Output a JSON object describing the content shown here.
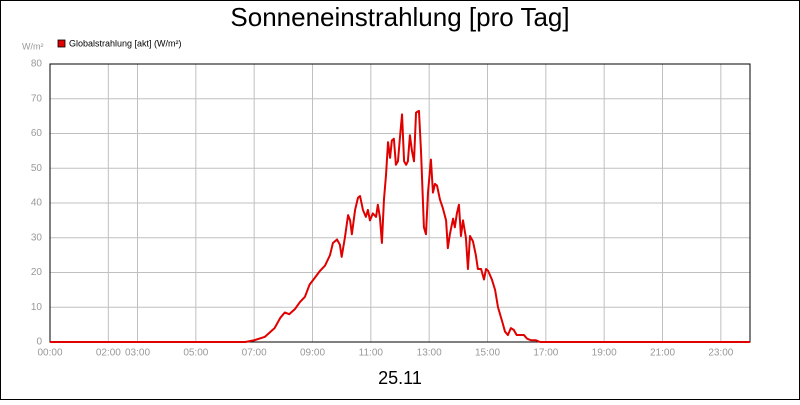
{
  "chart_data": {
    "type": "line",
    "title": "Sonneneinstrahlung [pro Tag]",
    "y_unit": "W/m²",
    "x_label": "25.11",
    "xlim": [
      0,
      24
    ],
    "ylim": [
      0,
      80
    ],
    "yticks": [
      0,
      10,
      20,
      30,
      40,
      50,
      60,
      70,
      80
    ],
    "xticks": [
      {
        "value": 0,
        "label": "00:00"
      },
      {
        "value": 2,
        "label": "02:00"
      },
      {
        "value": 3,
        "label": "03:00"
      },
      {
        "value": 5,
        "label": "05:00"
      },
      {
        "value": 7,
        "label": "07:00"
      },
      {
        "value": 9,
        "label": "09:00"
      },
      {
        "value": 11,
        "label": "11:00"
      },
      {
        "value": 13,
        "label": "13:00"
      },
      {
        "value": 15,
        "label": "15:00"
      },
      {
        "value": 17,
        "label": "17:00"
      },
      {
        "value": 19,
        "label": "19:00"
      },
      {
        "value": 21,
        "label": "21:00"
      },
      {
        "value": 23,
        "label": "23:00"
      }
    ],
    "grid": true,
    "legend": "top-left",
    "x": [
      0,
      6.7,
      7.0,
      7.37,
      7.7,
      7.9,
      8.05,
      8.2,
      8.4,
      8.57,
      8.74,
      8.9,
      9.08,
      9.26,
      9.43,
      9.6,
      9.7,
      9.84,
      9.94,
      10.0,
      10.11,
      10.22,
      10.29,
      10.35,
      10.46,
      10.56,
      10.63,
      10.73,
      10.83,
      10.9,
      10.97,
      11.07,
      11.18,
      11.24,
      11.31,
      11.38,
      11.45,
      11.52,
      11.59,
      11.66,
      11.72,
      11.79,
      11.86,
      11.93,
      12.0,
      12.07,
      12.14,
      12.21,
      12.27,
      12.34,
      12.41,
      12.48,
      12.55,
      12.65,
      12.72,
      12.82,
      12.89,
      12.96,
      13.06,
      13.13,
      13.2,
      13.27,
      13.37,
      13.47,
      13.58,
      13.64,
      13.71,
      13.82,
      13.88,
      13.95,
      14.02,
      14.09,
      14.16,
      14.26,
      14.33,
      14.4,
      14.5,
      14.6,
      14.67,
      14.78,
      14.88,
      14.95,
      15.02,
      15.15,
      15.26,
      15.36,
      15.5,
      15.6,
      15.7,
      15.8,
      15.9,
      16.0,
      16.11,
      16.25,
      16.35,
      16.49,
      16.66,
      16.8,
      24
    ],
    "series": [
      {
        "name": "Globalstrahlung [akt] (W/m²)",
        "color": "#e00000",
        "values": [
          0,
          0,
          0.5,
          1.5,
          4,
          7,
          8.5,
          8,
          9.5,
          11.5,
          13,
          16.5,
          18.5,
          20.5,
          22,
          25,
          28.5,
          29.5,
          28,
          24.5,
          30,
          36.5,
          35,
          31,
          38,
          41.5,
          42,
          38,
          36,
          38,
          35,
          37,
          36,
          39.5,
          36,
          28.5,
          41,
          48,
          57.5,
          53,
          58,
          58.5,
          51,
          52,
          59,
          65.5,
          52,
          51,
          52,
          59.5,
          55,
          52,
          66,
          66.5,
          55,
          33,
          31,
          43,
          52.5,
          43,
          45.5,
          45,
          41,
          38.5,
          35,
          27,
          31,
          35.5,
          33,
          37,
          39.5,
          30.5,
          35,
          30,
          21,
          30.5,
          29,
          25,
          21,
          21,
          18,
          21,
          20.5,
          18,
          15,
          10,
          6,
          3,
          2,
          4,
          3.5,
          2,
          2,
          2,
          1,
          0.5,
          0.5,
          0,
          0
        ]
      }
    ]
  }
}
